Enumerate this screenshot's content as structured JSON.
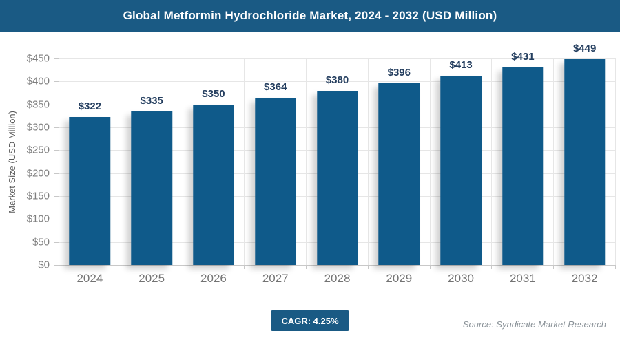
{
  "header": {
    "title": "Global Metformin Hydrochloride Market, 2024 - 2032 (USD Million)"
  },
  "chart_data": {
    "type": "bar",
    "title": "Global Metformin Hydrochloride Market, 2024 - 2032 (USD Million)",
    "categories": [
      "2024",
      "2025",
      "2026",
      "2027",
      "2028",
      "2029",
      "2030",
      "2031",
      "2032"
    ],
    "values": [
      322,
      335,
      350,
      364,
      380,
      396,
      413,
      431,
      449
    ],
    "value_labels": [
      "$322",
      "$335",
      "$350",
      "$364",
      "$380",
      "$396",
      "$413",
      "$431",
      "$449"
    ],
    "xlabel": "",
    "ylabel": "Market Size (USD Million)",
    "ylim": [
      0,
      450
    ],
    "ytick_values": [
      0,
      50,
      100,
      150,
      200,
      250,
      300,
      350,
      400,
      450
    ],
    "ytick_labels": [
      "$0",
      "$50",
      "$100",
      "$150",
      "$200",
      "$250",
      "$300",
      "$350",
      "$400",
      "$450"
    ],
    "grid": true,
    "legend": "none",
    "bar_color": "#0F5A8A",
    "value_label_color": "#243E5F"
  },
  "footer": {
    "cagr_label": "CAGR: 4.25%",
    "source": "Source: Syndicate Market Research"
  },
  "colors": {
    "banner_bg": "#1A5A84",
    "banner_text": "#FFFFFF",
    "bar": "#0F5A8A",
    "gridline": "#E6E6E6",
    "axis_line": "#C8C8C8",
    "tick_text": "#7F7F7F",
    "x_tick_text": "#737373",
    "y_axis_title_text": "#595959",
    "source_text": "#8A9298"
  }
}
